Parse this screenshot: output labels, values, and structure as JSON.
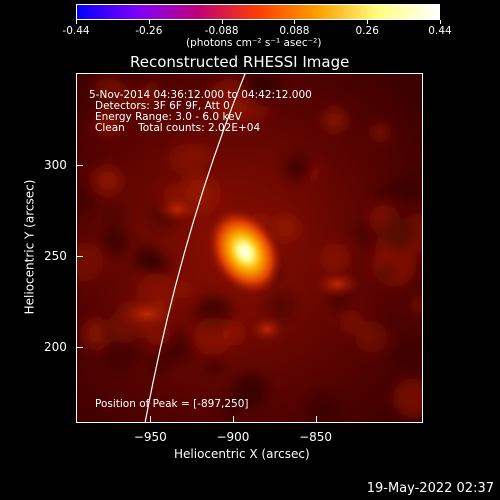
{
  "chart_data": {
    "type": "heatmap",
    "title": "Reconstructed RHESSI Image",
    "xlabel": "Heliocentric X (arcsec)",
    "ylabel": "Heliocentric Y (arcsec)",
    "xlim": [
      -995,
      -890
    ],
    "xticks": [
      -950,
      -900,
      -850
    ],
    "yticks": [
      300,
      250,
      200
    ],
    "colorbar": {
      "ticks": [
        "-0.44",
        "-0.26",
        "-0.088",
        "0.088",
        "0.26",
        "0.44"
      ],
      "label": "(photons cm⁻² s⁻¹ asec⁻²)",
      "colors": [
        "#0000ff",
        "#7f00ff",
        "#c0007a",
        "#ff3c00",
        "#ffa000",
        "#ffff80",
        "#ffffff"
      ]
    },
    "annotations": [
      "5-Nov-2014 04:36:12.000 to 04:42:12.000",
      "Detectors: 3F 6F 9F, Att 0",
      "Energy Range: 3.0 - 6.0 keV",
      "Clean    Total counts: 2.02E+04"
    ],
    "peak_label": "Position of Peak = [-897,250]",
    "peak": [
      -897,
      250
    ]
  },
  "footer": {
    "timestamp": "19-May-2022 02:37"
  }
}
